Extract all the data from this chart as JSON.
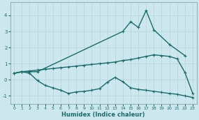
{
  "xlabel": "Humidex (Indice chaleur)",
  "xlim": [
    -0.5,
    23.5
  ],
  "ylim": [
    -1.5,
    4.8
  ],
  "yticks": [
    -1,
    0,
    1,
    2,
    3,
    4
  ],
  "xticks": [
    0,
    1,
    2,
    3,
    4,
    5,
    6,
    7,
    8,
    9,
    10,
    11,
    12,
    13,
    14,
    15,
    16,
    17,
    18,
    19,
    20,
    21,
    22,
    23
  ],
  "bg_color": "#cce8ee",
  "line_color": "#1a6b6b",
  "grid_color": "#b8d8e0",
  "line1_x": [
    0,
    1,
    2,
    3,
    14,
    15,
    16,
    17,
    18,
    20,
    22
  ],
  "line1_y": [
    0.4,
    0.5,
    0.5,
    0.5,
    3.0,
    3.6,
    3.25,
    4.3,
    3.1,
    2.2,
    1.5
  ],
  "line2_x": [
    0,
    1,
    2,
    3,
    4,
    5,
    6,
    7,
    8,
    9,
    10,
    11,
    12,
    13,
    14,
    15,
    16,
    17,
    18,
    19,
    20,
    21,
    22,
    23
  ],
  "line2_y": [
    0.4,
    0.5,
    0.55,
    0.6,
    0.65,
    0.7,
    0.75,
    0.8,
    0.85,
    0.9,
    0.95,
    1.0,
    1.05,
    1.1,
    1.2,
    1.25,
    1.35,
    1.45,
    1.55,
    1.5,
    1.45,
    1.3,
    0.45,
    -0.85
  ],
  "line3_x": [
    0,
    1,
    2,
    3,
    4,
    5,
    6,
    7,
    8,
    9,
    10,
    11,
    12,
    13,
    14,
    15,
    16,
    17,
    18,
    19,
    20,
    21,
    22,
    23
  ],
  "line3_y": [
    0.4,
    0.5,
    0.4,
    -0.05,
    -0.35,
    -0.5,
    -0.65,
    -0.85,
    -0.75,
    -0.72,
    -0.65,
    -0.55,
    -0.15,
    0.15,
    -0.12,
    -0.5,
    -0.6,
    -0.65,
    -0.72,
    -0.78,
    -0.85,
    -0.9,
    -1.0,
    -1.1
  ],
  "markersize": 2.5,
  "linewidth": 1.0
}
